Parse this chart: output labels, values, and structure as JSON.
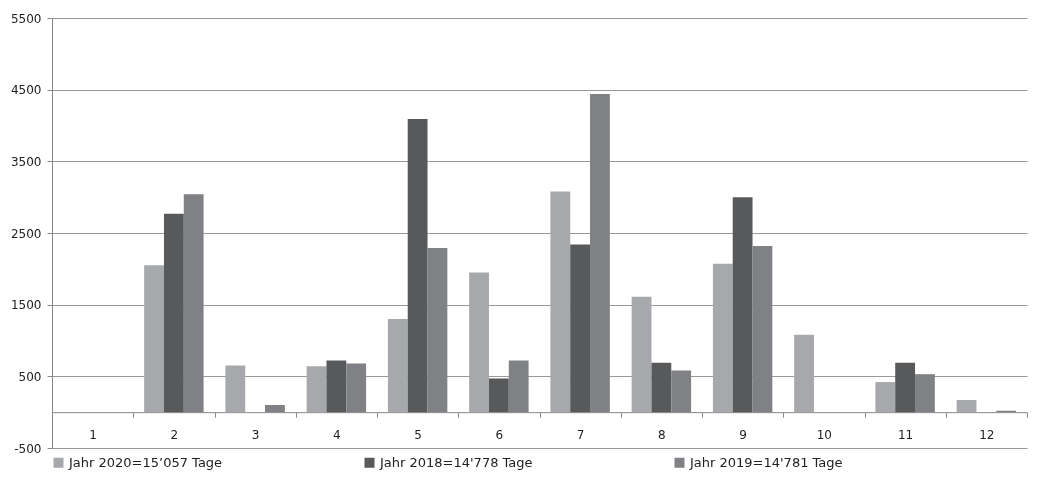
{
  "chart_data": {
    "type": "bar",
    "categories": [
      "1",
      "2",
      "3",
      "4",
      "5",
      "6",
      "7",
      "8",
      "9",
      "10",
      "11",
      "12"
    ],
    "series": [
      {
        "name": "Jahr 2020=15’057 Tage",
        "color": "#a7a8ab",
        "values": [
          0,
          2050,
          650,
          640,
          1300,
          1950,
          3080,
          1610,
          2070,
          1080,
          420,
          170
        ]
      },
      {
        "name": "Jahr 2018=14'778 Tage",
        "color": "#58595b",
        "values": [
          0,
          2770,
          0,
          720,
          4090,
          470,
          2340,
          690,
          3000,
          0,
          690,
          0
        ]
      },
      {
        "name": "Jahr 2019=14'781 Tage",
        "color": "#808184",
        "values": [
          0,
          3040,
          100,
          680,
          2290,
          720,
          4440,
          580,
          2320,
          0,
          530,
          20
        ]
      }
    ],
    "ylim": [
      -500,
      5500
    ],
    "yticks": [
      -500,
      500,
      1500,
      2500,
      3500,
      4500,
      5500
    ],
    "grid": "y",
    "legend": "bottom"
  }
}
